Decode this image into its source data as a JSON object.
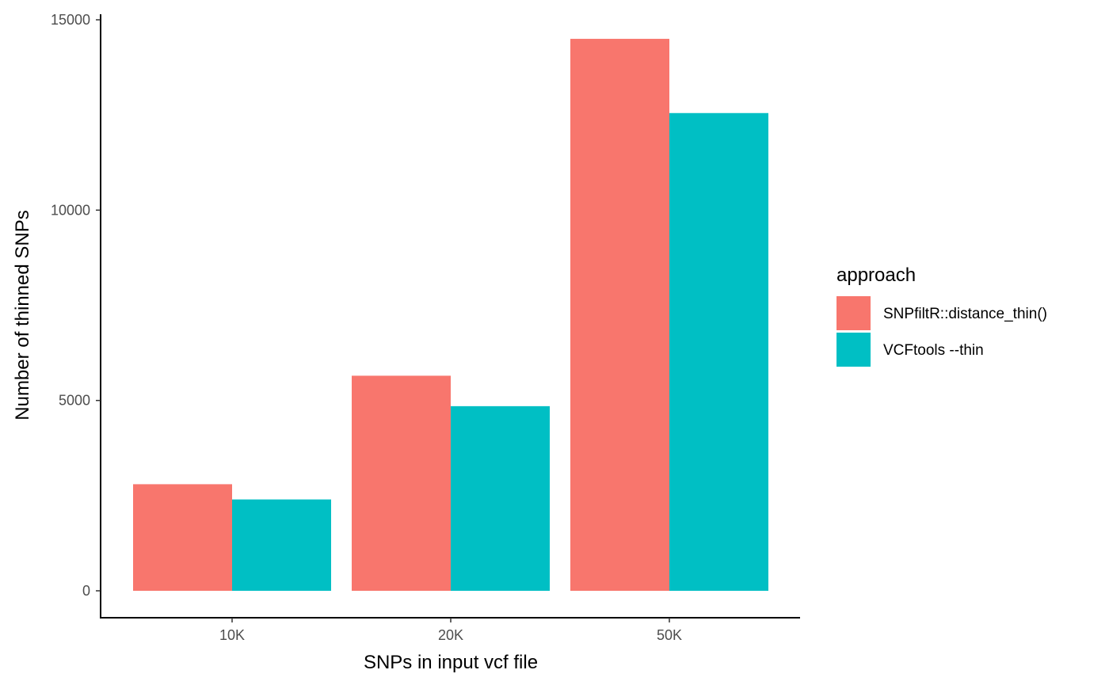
{
  "chart_data": {
    "type": "bar",
    "categories": [
      "10K",
      "20K",
      "50K"
    ],
    "series": [
      {
        "name": "SNPfiltR::distance_thin()",
        "color": "#F8766D",
        "values": [
          2800,
          5650,
          14500
        ]
      },
      {
        "name": "VCFtools --thin",
        "color": "#00BFC4",
        "values": [
          2400,
          4850,
          12550
        ]
      }
    ],
    "title": "",
    "xlabel": "SNPs in input vcf file",
    "ylabel": "Number of thinned SNPs",
    "ylim": [
      0,
      15000
    ],
    "yticks": [
      0,
      5000,
      10000,
      15000
    ],
    "grid": false,
    "legend": {
      "title": "approach",
      "placement": "right"
    }
  }
}
